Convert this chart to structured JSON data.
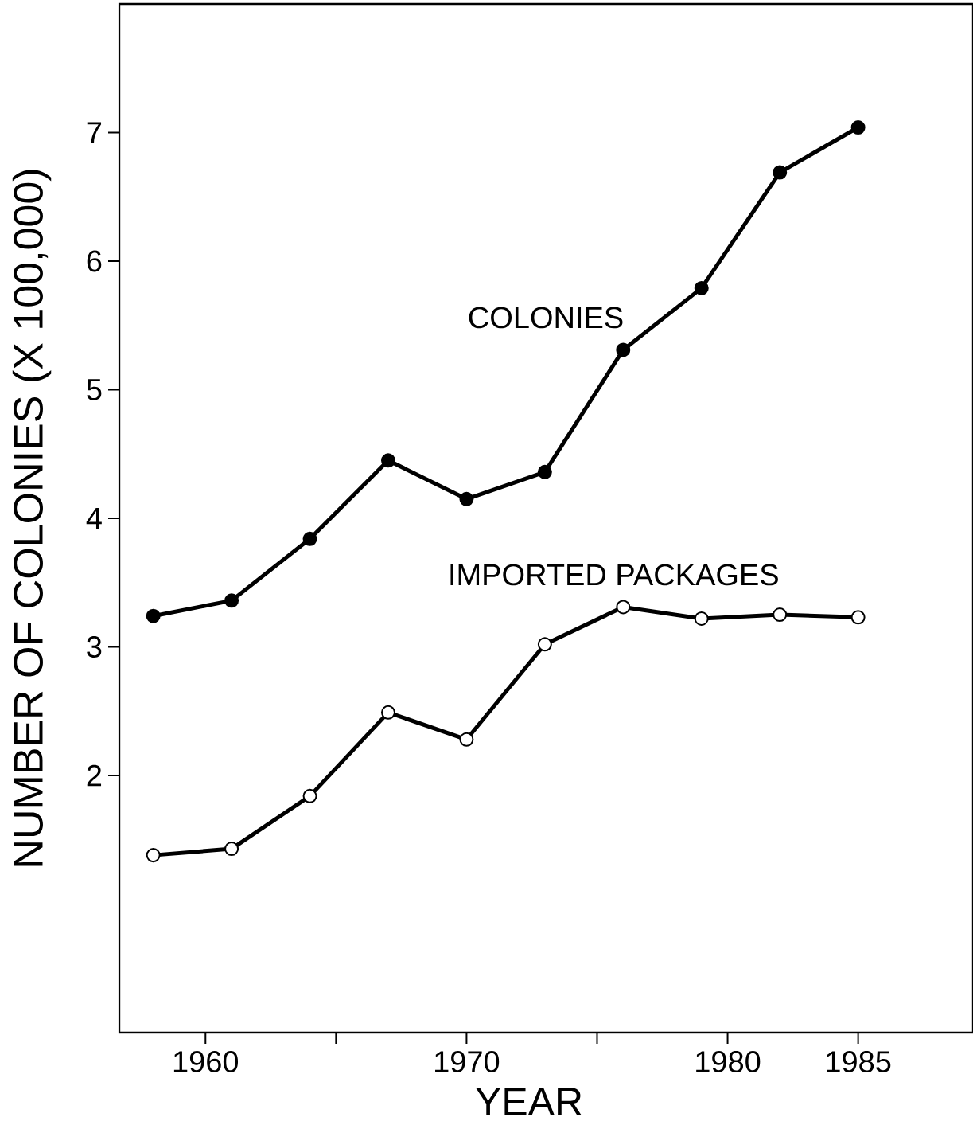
{
  "chart_data": {
    "type": "line",
    "xlabel": "YEAR",
    "ylabel": "NUMBER OF COLONIES (X 100,000)",
    "x": [
      1958,
      1961,
      1964,
      1967,
      1970,
      1973,
      1976,
      1979,
      1982,
      1985
    ],
    "series": [
      {
        "name": "COLONIES",
        "color": "#000000",
        "values": [
          3.24,
          3.36,
          3.84,
          4.45,
          4.15,
          4.36,
          5.31,
          5.79,
          6.69,
          7.04
        ]
      },
      {
        "name": "IMPORTED PACKAGES",
        "color": "#000000",
        "values": [
          1.38,
          1.43,
          1.84,
          2.49,
          2.28,
          3.02,
          3.31,
          3.22,
          3.25,
          3.23
        ]
      }
    ],
    "xlim": [
      1956.7,
      1989.4
    ],
    "ylim": [
      0,
      8
    ],
    "xticks": [
      1960,
      {
        "value": 1965,
        "label": null
      },
      1970,
      {
        "value": 1975,
        "label": null
      },
      1980,
      1985
    ],
    "yticks": [
      2,
      3,
      4,
      5,
      6,
      7
    ],
    "marker": "circle",
    "line_style": "solid",
    "grid": false
  }
}
